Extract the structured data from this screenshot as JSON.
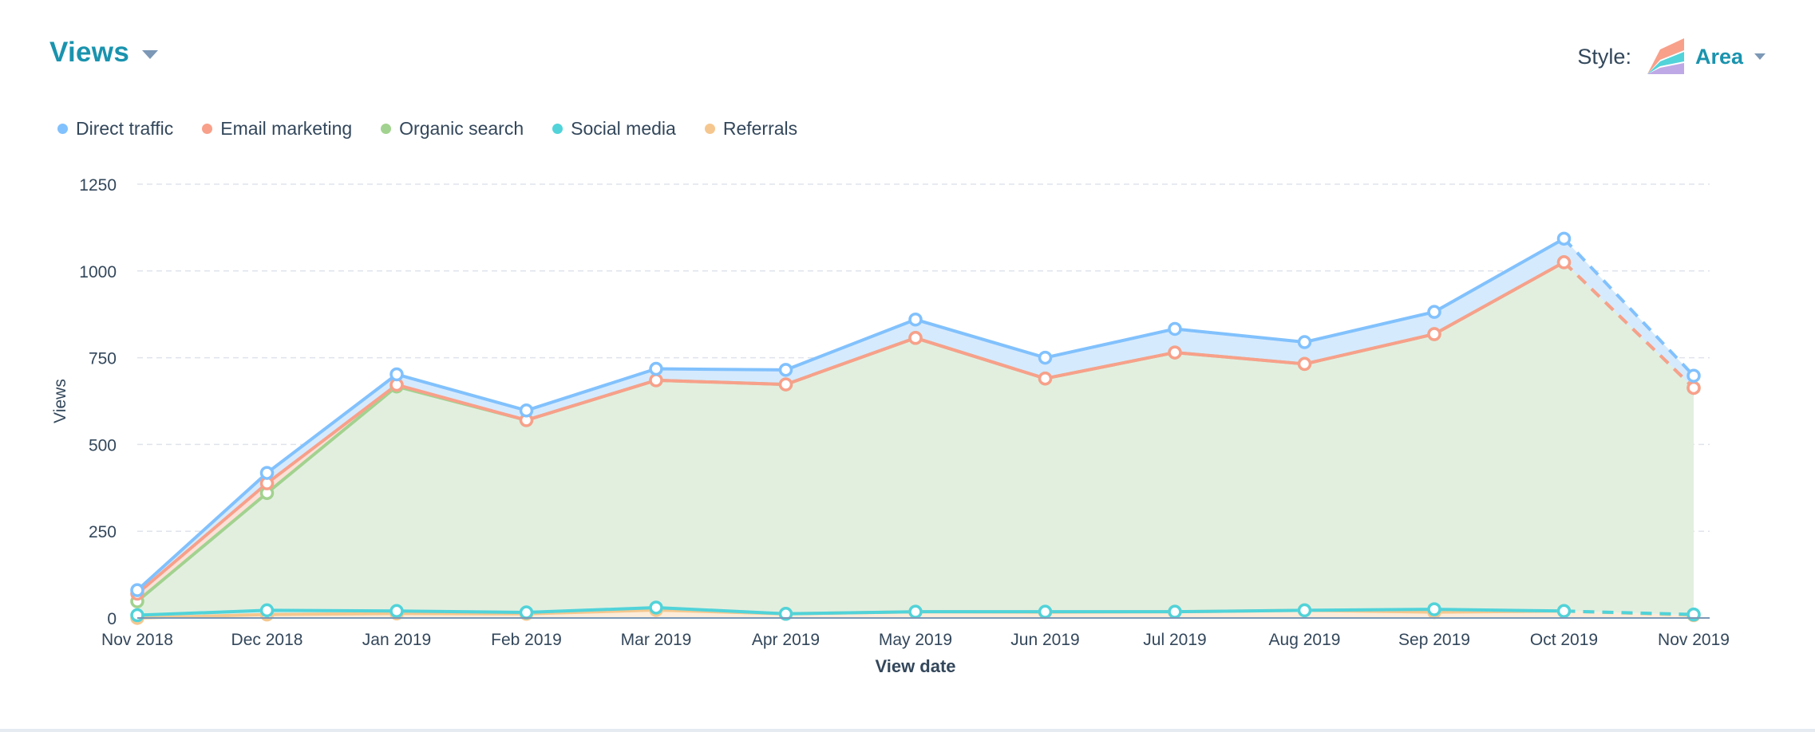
{
  "header": {
    "title": "Views",
    "style_label": "Style:",
    "style_value": "Area",
    "style_icon": "stacked-area-chart-icon"
  },
  "colors": {
    "accent": "#1a93ae",
    "text": "#33475b",
    "caret": "#7c98b6"
  },
  "chart_data": {
    "type": "area",
    "stacked": true,
    "title": "Views",
    "xlabel": "View date",
    "ylabel": "Views",
    "ylim": [
      0,
      1250
    ],
    "yticks": [
      0,
      250,
      500,
      750,
      1000,
      1250
    ],
    "grid": true,
    "legend_position": "top-left",
    "categories": [
      "Nov 2018",
      "Dec 2018",
      "Jan 2019",
      "Feb 2019",
      "Mar 2019",
      "Apr 2019",
      "May 2019",
      "Jun 2019",
      "Jul 2019",
      "Aug 2019",
      "Sep 2019",
      "Oct 2019",
      "Nov 2019"
    ],
    "last_point_projected": true,
    "series": [
      {
        "name": "Direct traffic",
        "color": "#81c1fd",
        "fill": "#d6eafd",
        "values": [
          10,
          30,
          30,
          28,
          33,
          42,
          53,
          60,
          68,
          63,
          64,
          68,
          35
        ]
      },
      {
        "name": "Email marketing",
        "color": "#f8a08a",
        "fill": "#fde0d8",
        "values": [
          22,
          28,
          5,
          0,
          0,
          0,
          0,
          0,
          0,
          0,
          0,
          0,
          0
        ]
      },
      {
        "name": "Organic search",
        "color": "#a2d28f",
        "fill": "#e2efdf",
        "values": [
          40,
          338,
          647,
          554,
          655,
          661,
          789,
          672,
          747,
          710,
          793,
          1005,
          653
        ]
      },
      {
        "name": "Social media",
        "color": "#51d3d9",
        "fill": "#d3f3f4",
        "values": [
          8,
          12,
          7,
          4,
          7,
          0,
          0,
          1,
          0,
          0,
          8,
          0,
          2
        ]
      },
      {
        "name": "Referrals",
        "color": "#f5c78e",
        "fill": "#fcecd9",
        "values": [
          0,
          10,
          13,
          12,
          23,
          12,
          18,
          17,
          18,
          22,
          17,
          20,
          8
        ]
      }
    ]
  }
}
